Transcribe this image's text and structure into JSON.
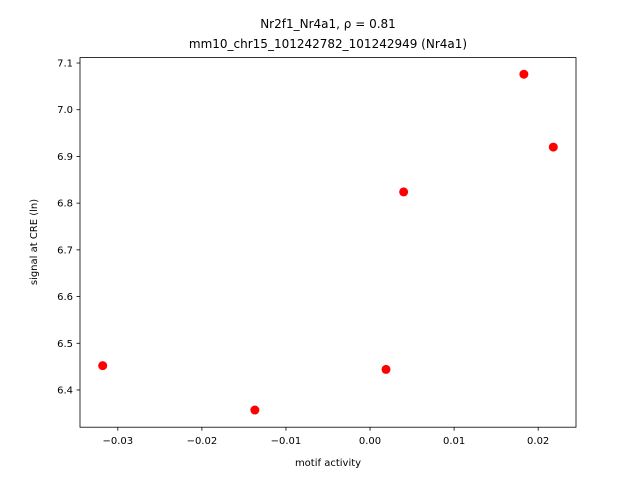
{
  "chart_data": {
    "type": "scatter",
    "title": [
      "Nr2f1_Nr4a1, ρ = 0.81",
      "mm10_chr15_101242782_101242949 (Nr4a1)"
    ],
    "x_label": "motif activity",
    "y_label": "signal at CRE (ln)",
    "x": [
      -0.0318,
      -0.0137,
      0.0019,
      0.004,
      0.0183,
      0.0218
    ],
    "y": [
      6.452,
      6.357,
      6.444,
      6.824,
      7.076,
      6.92
    ],
    "color": "#ff0000",
    "xlim": [
      -0.0345,
      0.0245
    ],
    "ylim": [
      6.3203,
      7.1116
    ],
    "xticks": [
      {
        "value": -0.03,
        "label": "−0.03"
      },
      {
        "value": -0.02,
        "label": "−0.02"
      },
      {
        "value": -0.01,
        "label": "−0.01"
      },
      {
        "value": 0,
        "label": "0.00"
      },
      0.01,
      0.02
    ],
    "yticks": [
      6.4,
      6.5,
      6.6,
      6.7,
      6.8,
      6.9,
      {
        "value": 7,
        "label": "7.0"
      },
      7.1
    ],
    "grid": false
  }
}
